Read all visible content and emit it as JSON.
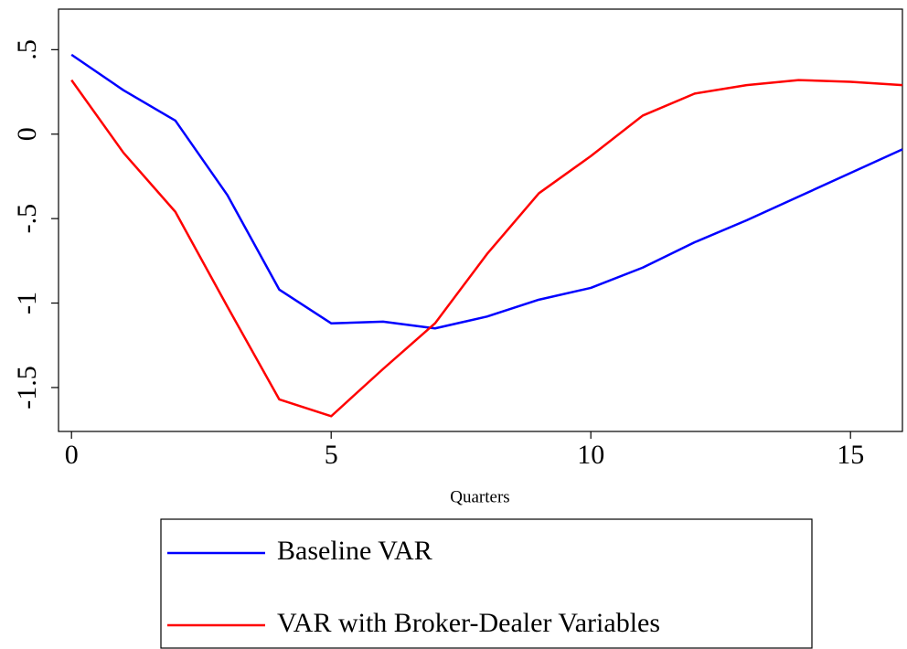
{
  "chart_data": {
    "type": "line",
    "x_label": "Quarters",
    "x": [
      0,
      1,
      2,
      3,
      4,
      5,
      6,
      7,
      8,
      9,
      10,
      11,
      12,
      13,
      14,
      15,
      16
    ],
    "series": [
      {
        "name": "Baseline VAR",
        "color": "#0000ff",
        "values": [
          0.47,
          0.26,
          0.08,
          -0.36,
          -0.92,
          -1.12,
          -1.11,
          -1.15,
          -1.08,
          -0.98,
          -0.91,
          -0.79,
          -0.64,
          -0.51,
          -0.37,
          -0.23,
          -0.09
        ]
      },
      {
        "name": "VAR with Broker-Dealer Variables",
        "color": "#ff0000",
        "values": [
          0.32,
          -0.11,
          -0.46,
          -1.02,
          -1.57,
          -1.67,
          -1.39,
          -1.12,
          -0.71,
          -0.35,
          -0.13,
          0.11,
          0.24,
          0.29,
          0.32,
          0.31,
          0.29
        ]
      }
    ],
    "xlim": [
      -0.25,
      16
    ],
    "xticks": [
      0,
      5,
      10,
      15
    ],
    "ylim": [
      -1.76,
      0.74
    ],
    "yticks": [
      {
        "value": 0.5,
        "label": ".5"
      },
      0,
      {
        "value": -0.5,
        "label": "-.5"
      },
      -1,
      -1.5
    ],
    "grid": false
  }
}
